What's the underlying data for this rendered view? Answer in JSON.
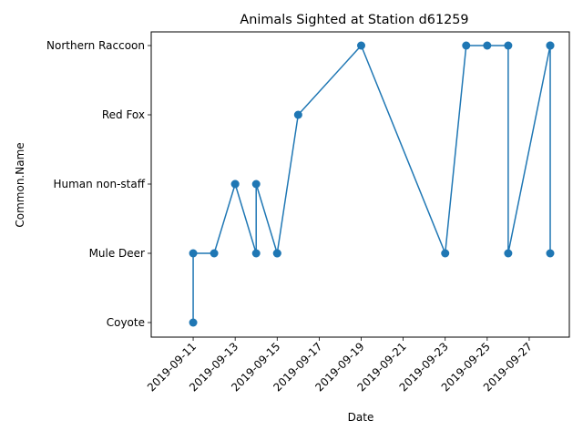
{
  "chart_data": {
    "type": "line",
    "title": "Animals Sighted at Station d61259",
    "xlabel": "Date",
    "ylabel": "Common.Name",
    "categories": [
      "Coyote",
      "Mule Deer",
      "Human non-staff",
      "Red Fox",
      "Northern Raccoon"
    ],
    "x_ticks": [
      "2019-09-11",
      "2019-09-13",
      "2019-09-15",
      "2019-09-17",
      "2019-09-19",
      "2019-09-21",
      "2019-09-23",
      "2019-09-25",
      "2019-09-27"
    ],
    "xlim": [
      "2019-09-10",
      "2019-09-28"
    ],
    "color": "#1f77b4",
    "points": [
      {
        "x": "2019-09-11",
        "y": "Coyote"
      },
      {
        "x": "2019-09-11",
        "y": "Mule Deer"
      },
      {
        "x": "2019-09-12",
        "y": "Mule Deer"
      },
      {
        "x": "2019-09-13",
        "y": "Human non-staff"
      },
      {
        "x": "2019-09-13",
        "y": "Human non-staff"
      },
      {
        "x": "2019-09-14",
        "y": "Mule Deer"
      },
      {
        "x": "2019-09-14",
        "y": "Human non-staff"
      },
      {
        "x": "2019-09-15",
        "y": "Mule Deer"
      },
      {
        "x": "2019-09-15",
        "y": "Mule Deer"
      },
      {
        "x": "2019-09-16",
        "y": "Red Fox"
      },
      {
        "x": "2019-09-19",
        "y": "Northern Raccoon"
      },
      {
        "x": "2019-09-23",
        "y": "Mule Deer"
      },
      {
        "x": "2019-09-24",
        "y": "Northern Raccoon"
      },
      {
        "x": "2019-09-25",
        "y": "Northern Raccoon"
      },
      {
        "x": "2019-09-26",
        "y": "Northern Raccoon"
      },
      {
        "x": "2019-09-26",
        "y": "Mule Deer"
      },
      {
        "x": "2019-09-28",
        "y": "Northern Raccoon"
      },
      {
        "x": "2019-09-28",
        "y": "Mule Deer"
      },
      {
        "x": "2019-09-28",
        "y": "Northern Raccoon"
      }
    ]
  }
}
